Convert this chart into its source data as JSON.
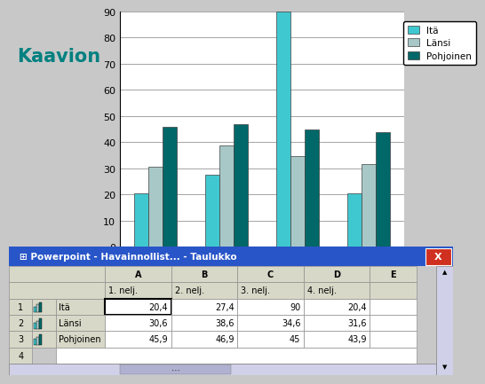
{
  "categories": [
    "1. nelj.",
    "2. nelj.",
    "3. nelj.",
    "4. nelj."
  ],
  "series": [
    {
      "label": "Itä",
      "values": [
        20.4,
        27.4,
        90,
        20.4
      ],
      "color": "#40C8D0"
    },
    {
      "label": "Länsi",
      "values": [
        30.6,
        38.6,
        34.6,
        31.6
      ],
      "color": "#A8C8C8"
    },
    {
      "label": "Pohjoinen",
      "values": [
        45.9,
        46.9,
        45,
        43.9
      ],
      "color": "#006868"
    }
  ],
  "ylim": [
    0,
    90
  ],
  "yticks": [
    0,
    10,
    20,
    30,
    40,
    50,
    60,
    70,
    80,
    90
  ],
  "chart_bg": "#FFFFFF",
  "fig_bg": "#C8C8C8",
  "left_panel_bg": "#FFFFFF",
  "left_text": "Kaavion",
  "left_text_color": "#008080",
  "table_title": "Powerpoint - Havainnollist... - Taulukko",
  "table_col_labels": [
    "1. nelj.",
    "2. nelj.",
    "3. nelj.",
    "4. nelj."
  ],
  "table_rows": [
    [
      "Itä",
      "20,4",
      "27,4",
      "90",
      "20,4"
    ],
    [
      "Länsi",
      "30,6",
      "38,6",
      "34,6",
      "31,6"
    ],
    [
      "Pohjoinen",
      "45,9",
      "46,9",
      "45",
      "43,9"
    ]
  ],
  "row_icon_colors": [
    "#40C8D0",
    "#A8C8C8",
    "#006868"
  ],
  "bar_width": 0.2,
  "titlebar_color": "#2855C8",
  "xbtn_color": "#D03020",
  "cell_bg": "#E8E8E0",
  "header_bg": "#D8D8D0",
  "white_bg": "#FFFFFF",
  "scrollbar_bg": "#C8C8E8"
}
